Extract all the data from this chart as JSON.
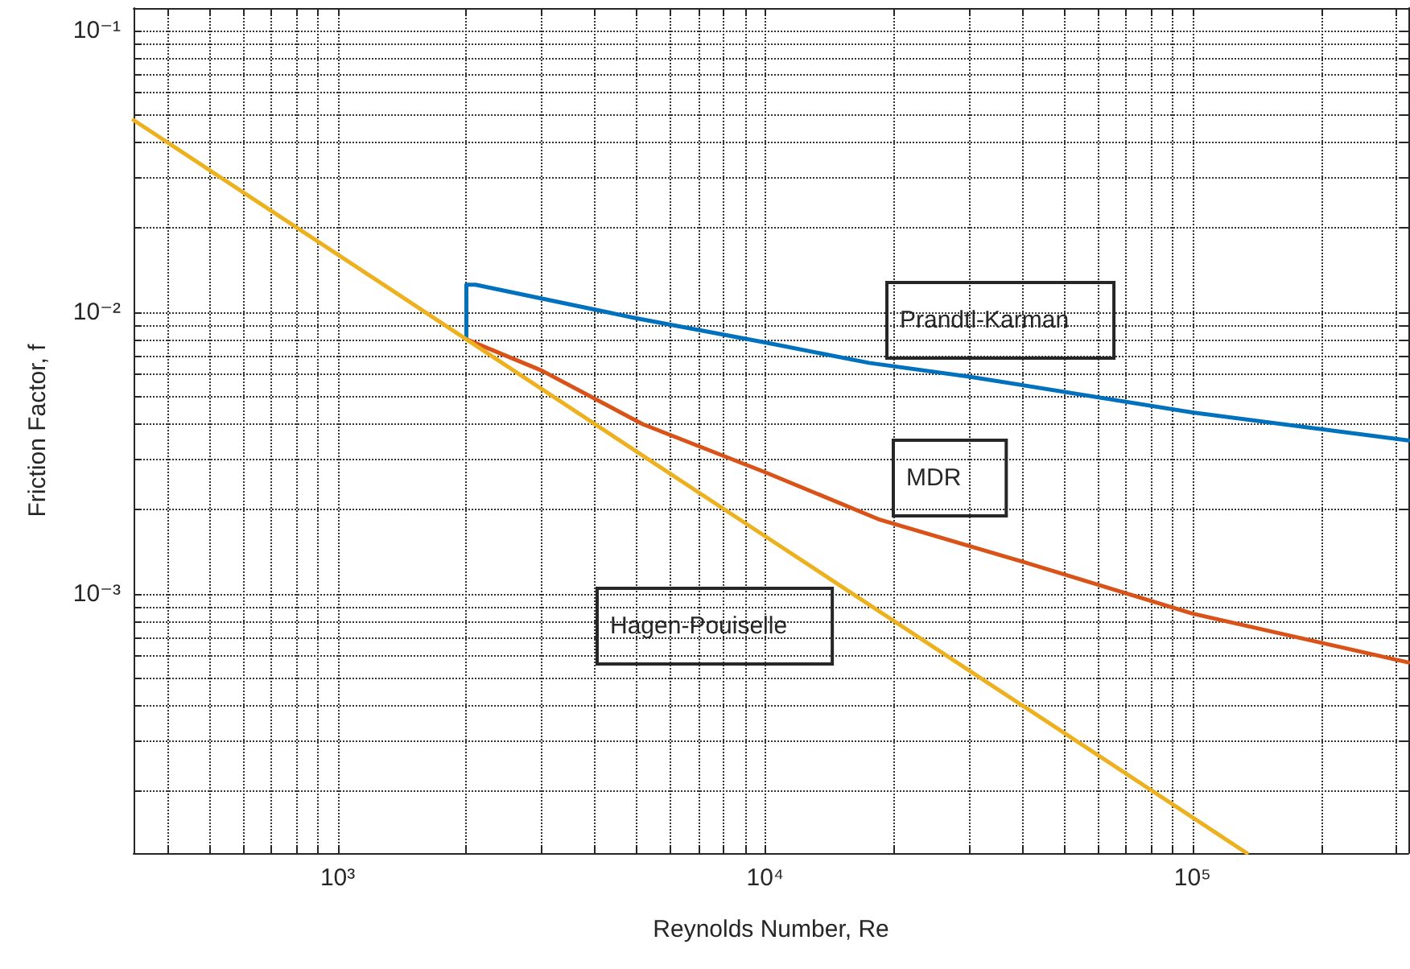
{
  "chart_data": {
    "type": "line",
    "xlabel": "Reynolds Number, Re",
    "ylabel": "Friction Factor, f",
    "log": "xy",
    "grid": true,
    "marker": "none",
    "line_style": "solid",
    "xlim": [
      333,
      320000
    ],
    "ylim": [
      0.00012,
      0.12
    ],
    "xticks": [
      {
        "value": 400,
        "label": null
      },
      {
        "value": 500,
        "label": null
      },
      {
        "value": 600,
        "label": null
      },
      {
        "value": 700,
        "label": null
      },
      {
        "value": 800,
        "label": null
      },
      {
        "value": 900,
        "label": null
      },
      {
        "value": 1000,
        "label": "10³"
      },
      {
        "value": 2000,
        "label": null
      },
      {
        "value": 3000,
        "label": null
      },
      {
        "value": 4000,
        "label": null
      },
      {
        "value": 5000,
        "label": null
      },
      {
        "value": 6000,
        "label": null
      },
      {
        "value": 7000,
        "label": null
      },
      {
        "value": 8000,
        "label": null
      },
      {
        "value": 9000,
        "label": null
      },
      {
        "value": 10000,
        "label": "10⁴"
      },
      {
        "value": 20000,
        "label": null
      },
      {
        "value": 30000,
        "label": null
      },
      {
        "value": 40000,
        "label": null
      },
      {
        "value": 50000,
        "label": null
      },
      {
        "value": 60000,
        "label": null
      },
      {
        "value": 70000,
        "label": null
      },
      {
        "value": 80000,
        "label": null
      },
      {
        "value": 90000,
        "label": null
      },
      {
        "value": 100000,
        "label": "10⁵"
      },
      {
        "value": 200000,
        "label": null
      },
      {
        "value": 300000,
        "label": null
      }
    ],
    "yticks": [
      {
        "value": 0.0002,
        "label": null
      },
      {
        "value": 0.0003,
        "label": null
      },
      {
        "value": 0.0004,
        "label": null
      },
      {
        "value": 0.0005,
        "label": null
      },
      {
        "value": 0.0006,
        "label": null
      },
      {
        "value": 0.0007,
        "label": null
      },
      {
        "value": 0.0008,
        "label": null
      },
      {
        "value": 0.0009,
        "label": null
      },
      {
        "value": 0.001,
        "label": "10⁻³"
      },
      {
        "value": 0.002,
        "label": null
      },
      {
        "value": 0.003,
        "label": null
      },
      {
        "value": 0.004,
        "label": null
      },
      {
        "value": 0.005,
        "label": null
      },
      {
        "value": 0.006,
        "label": null
      },
      {
        "value": 0.007,
        "label": null
      },
      {
        "value": 0.008,
        "label": null
      },
      {
        "value": 0.009,
        "label": null
      },
      {
        "value": 0.01,
        "label": "10⁻²"
      },
      {
        "value": 0.02,
        "label": null
      },
      {
        "value": 0.03,
        "label": null
      },
      {
        "value": 0.04,
        "label": null
      },
      {
        "value": 0.05,
        "label": null
      },
      {
        "value": 0.06,
        "label": null
      },
      {
        "value": 0.07,
        "label": null
      },
      {
        "value": 0.08,
        "label": null
      },
      {
        "value": 0.09,
        "label": null
      },
      {
        "value": 0.1,
        "label": "10⁻¹"
      }
    ],
    "series": [
      {
        "color": "#0072bd",
        "x": [
          2000,
          2000,
          2100,
          5000,
          10000,
          17500,
          30000,
          100000,
          320000
        ],
        "values": [
          0.0081,
          0.0125,
          0.0125,
          0.0095,
          0.0078,
          0.0066,
          0.0059,
          0.0044,
          0.0035
        ]
      },
      {
        "color": "#d95319",
        "x": [
          2000,
          3000,
          5170,
          10000,
          18400,
          40000,
          100000,
          320000
        ],
        "values": [
          0.008,
          0.0062,
          0.004,
          0.0027,
          0.00184,
          0.0013,
          0.00085,
          0.00057
        ]
      },
      {
        "color": "#edb120",
        "x": [
          333,
          2000,
          10000,
          134000
        ],
        "values": [
          0.048,
          0.008,
          0.0016,
          0.00012
        ]
      }
    ],
    "annotations": [
      "Prandtl-Karman",
      "MDR",
      "Hagen-Pouiselle"
    ]
  }
}
